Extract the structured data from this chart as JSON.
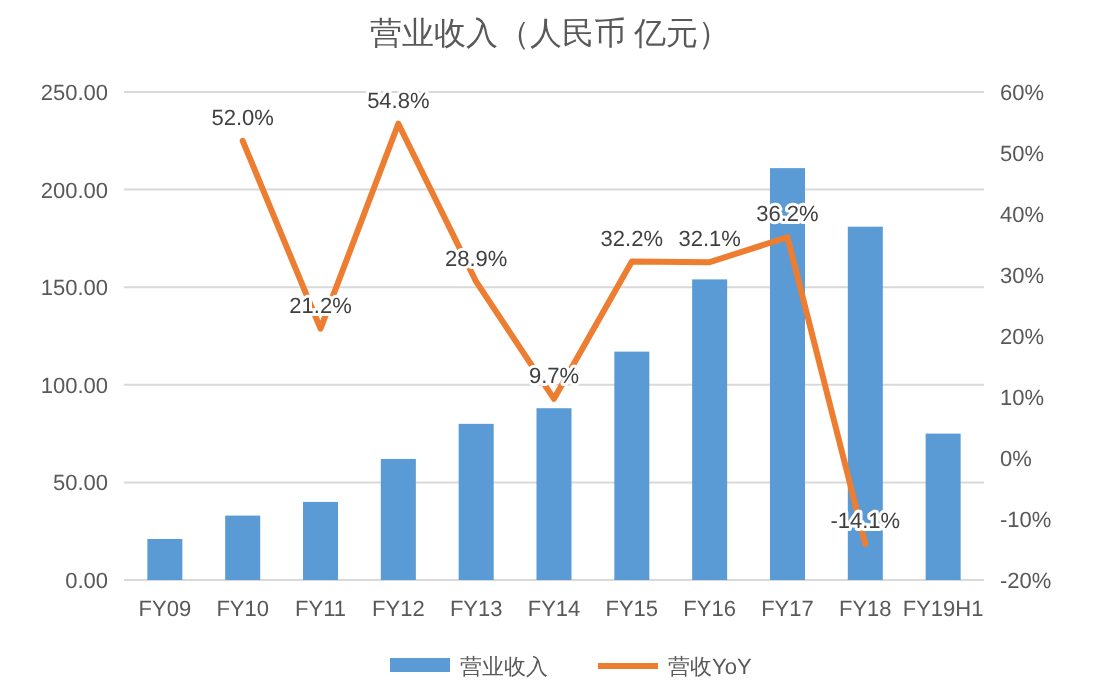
{
  "chart_data": {
    "type": "bar",
    "title": "营业收入（人民币 亿元）",
    "categories": [
      "FY09",
      "FY10",
      "FY11",
      "FY12",
      "FY13",
      "FY14",
      "FY15",
      "FY16",
      "FY17",
      "FY18",
      "FY19H1"
    ],
    "series": [
      {
        "name": "营业收入",
        "color": "#5b9bd5",
        "values": [
          21,
          33,
          40,
          62,
          80,
          88,
          117,
          154,
          211,
          181,
          75
        ]
      },
      {
        "name": "营收YoY",
        "type": "line",
        "axis": "y2",
        "color": "#ed7d31",
        "data_labels": true,
        "values": [
          null,
          52.0,
          21.2,
          54.8,
          28.9,
          9.7,
          32.2,
          32.1,
          36.2,
          -14.1,
          null
        ],
        "value_labels": [
          null,
          "52.0%",
          "21.2%",
          "54.8%",
          "28.9%",
          "9.7%",
          "32.2%",
          "32.1%",
          "36.2%",
          "-14.1%",
          null
        ]
      }
    ],
    "ylim": [
      0,
      250
    ],
    "yticks": [
      {
        "value": 0,
        "label": "0.00"
      },
      {
        "value": 50,
        "label": "50.00"
      },
      {
        "value": 100,
        "label": "100.00"
      },
      {
        "value": 150,
        "label": "150.00"
      },
      {
        "value": 200,
        "label": "200.00"
      },
      {
        "value": 250,
        "label": "250.00"
      }
    ],
    "y2lim": [
      -20,
      60
    ],
    "y2ticks": [
      {
        "value": -20,
        "label": "-20%"
      },
      {
        "value": -10,
        "label": "-10%"
      },
      {
        "value": 0,
        "label": "0%"
      },
      {
        "value": 10,
        "label": "10%"
      },
      {
        "value": 20,
        "label": "20%"
      },
      {
        "value": 30,
        "label": "30%"
      },
      {
        "value": 40,
        "label": "40%"
      },
      {
        "value": 50,
        "label": "50%"
      },
      {
        "value": 60,
        "label": "60%"
      }
    ],
    "grid": "y",
    "legend": "bottom",
    "marker": "none",
    "line_style": "solid"
  }
}
